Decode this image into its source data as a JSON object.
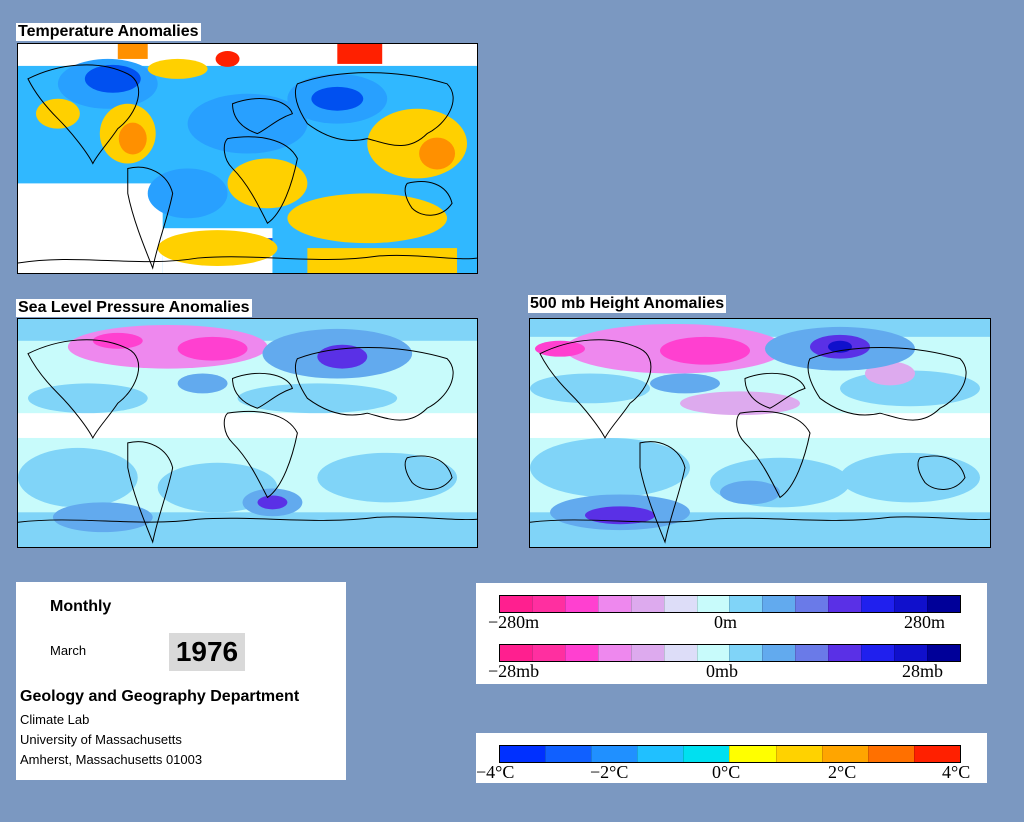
{
  "panels": {
    "temperature": {
      "title": "Temperature Anomalies"
    },
    "slp": {
      "title": "Sea Level Pressure Anomalies"
    },
    "height500": {
      "title": "500 mb Height Anomalies"
    }
  },
  "info": {
    "period": "Monthly",
    "month": "March",
    "year": "1976",
    "department": "Geology and Geography Department",
    "lab": "Climate Lab",
    "university": "University of Massachusetts",
    "address": "Amherst, Massachusetts 01003"
  },
  "legends": {
    "height": {
      "labels": [
        "−280m",
        "0m",
        "280m"
      ]
    },
    "pressure": {
      "labels": [
        "−28mb",
        "0mb",
        "28mb"
      ]
    },
    "temperature": {
      "labels": [
        "−4°C",
        "−2°C",
        "0°C",
        "2°C",
        "4°C"
      ]
    }
  },
  "colors": {
    "background": "#7b98c1",
    "anomaly_scale": [
      "#ff1f8f",
      "#ff2fa0",
      "#ff40d0",
      "#ee88ee",
      "#ddaaee",
      "#ddddf8",
      "#c8fbfb",
      "#80d4f8",
      "#62aaee",
      "#6a7ae8",
      "#5a30e6",
      "#2020ee",
      "#1010cc",
      "#000099"
    ],
    "temperature_scale": [
      "#0030ff",
      "#1060ff",
      "#2090ff",
      "#20c0ff",
      "#00e0f0",
      "#ffff00",
      "#ffd200",
      "#ffa500",
      "#ff7000",
      "#ff2000"
    ]
  }
}
